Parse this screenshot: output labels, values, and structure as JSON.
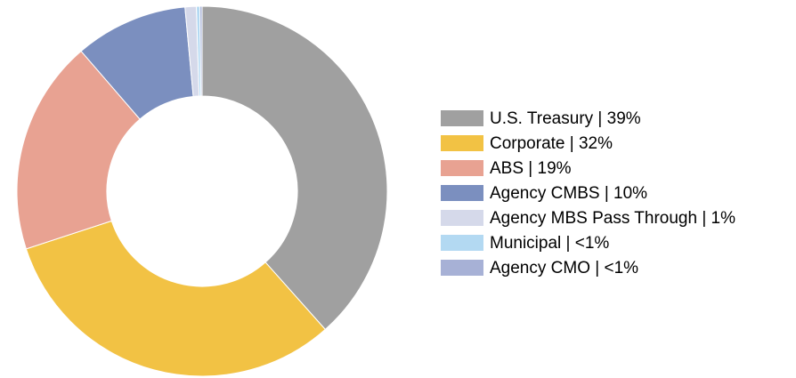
{
  "chart_data": {
    "type": "donut",
    "categories": [
      "U.S. Treasury | 39%",
      "Corporate | 32%",
      "ABS | 19%",
      "Agency CMBS | 10%",
      "Agency MBS Pass Through | 1%",
      "Municipal | <1%",
      "Agency CMO | <1%"
    ],
    "values": [
      39,
      32,
      19,
      10,
      1,
      0.3,
      0.2
    ],
    "colors": [
      "#a0a0a0",
      "#f2c244",
      "#e8a292",
      "#7b8fbf",
      "#d5d9ea",
      "#b3d9f2",
      "#a7b1d6"
    ],
    "legend": "right"
  }
}
